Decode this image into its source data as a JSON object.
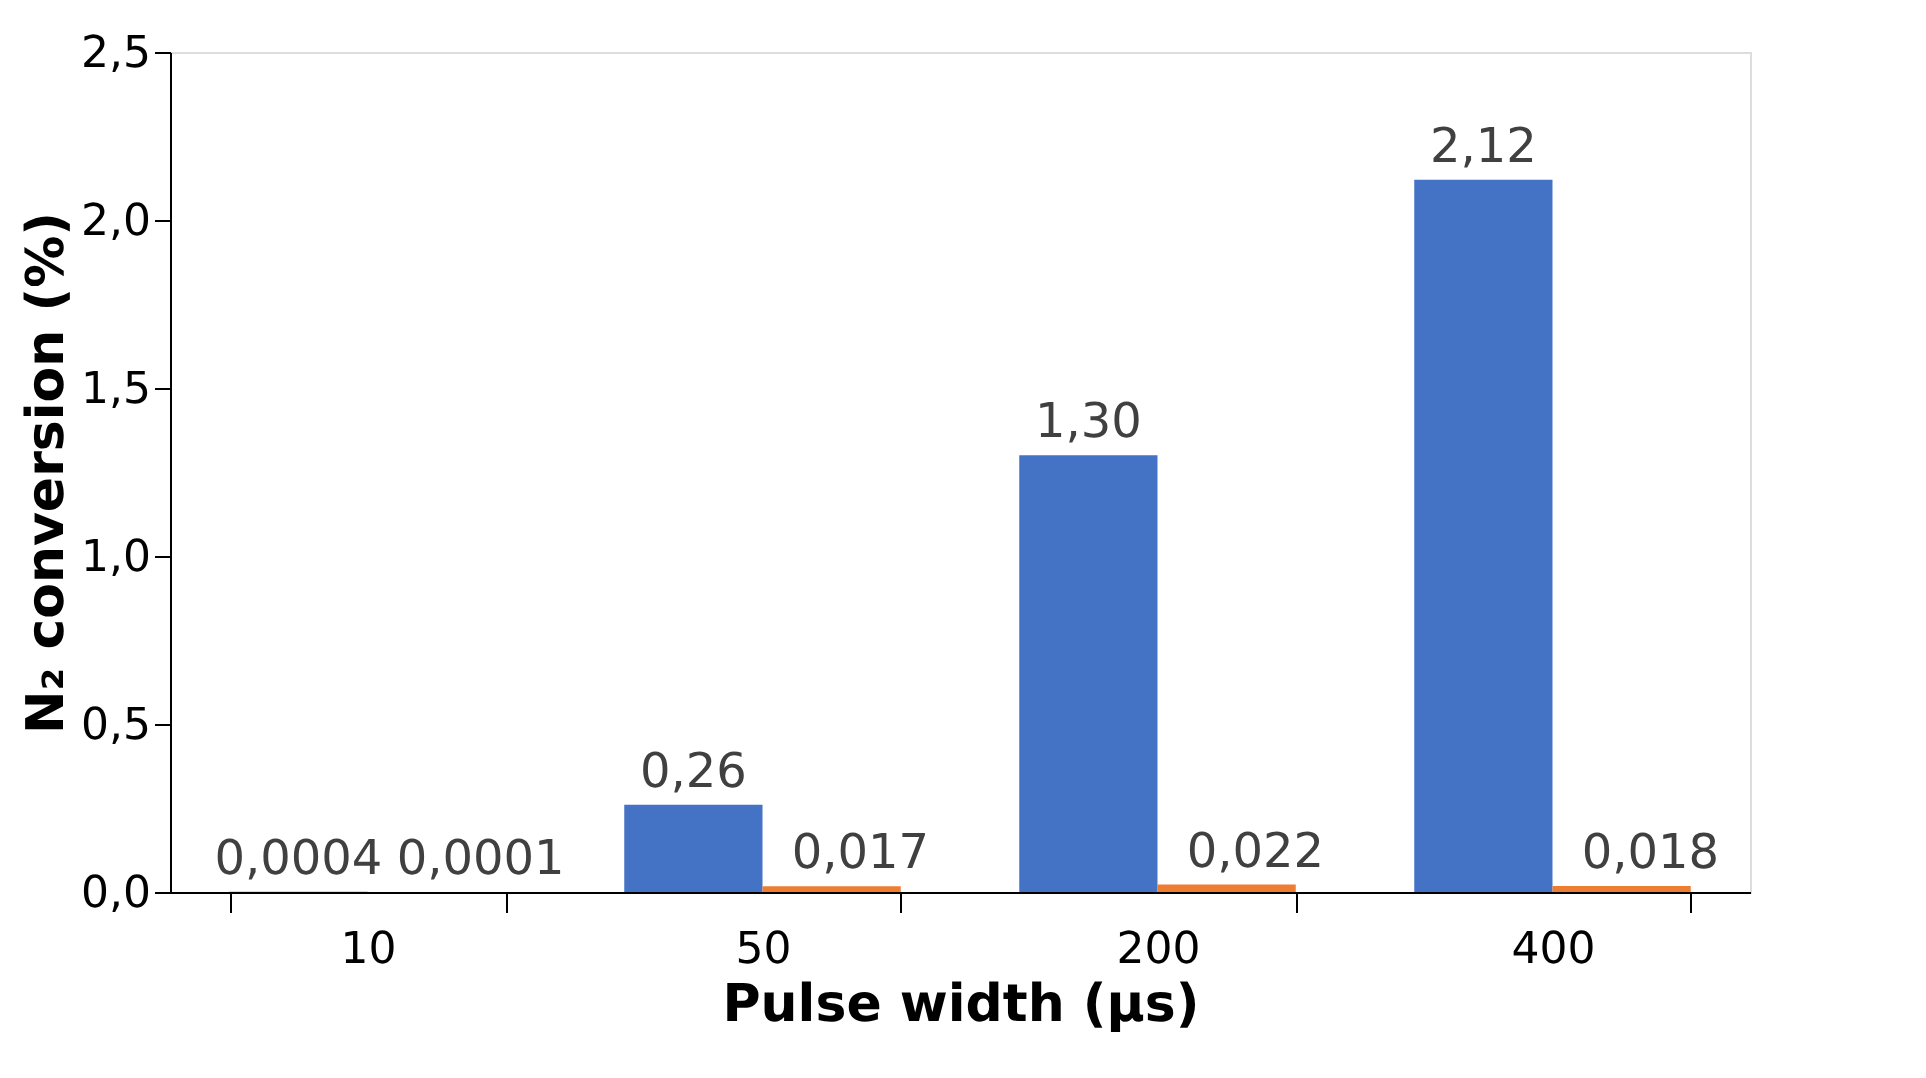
{
  "chart_data": {
    "type": "bar",
    "xlabel": "Pulse width (µs)",
    "ylabel": "N₂ conversion (%)",
    "categories": [
      "10",
      "50",
      "200",
      "400"
    ],
    "series": [
      {
        "color": "#4472c4",
        "values": [
          0.0004,
          0.26,
          1.3,
          2.12
        ],
        "value_labels": [
          "0,0004",
          "0,26",
          "1,30",
          "2,12"
        ]
      },
      {
        "color": "#ed7d31",
        "values": [
          0.0001,
          0.017,
          0.022,
          0.018
        ],
        "value_labels": [
          "0,0001",
          "0,017",
          "0,022",
          "0,018"
        ]
      }
    ],
    "ylim": [
      0,
      2.5
    ],
    "yticks": [
      {
        "value": 0,
        "label": "0,0"
      },
      {
        "value": 0.5,
        "label": "0,5"
      },
      {
        "value": 1.0,
        "label": "1,0"
      },
      {
        "value": 1.5,
        "label": "1,5"
      },
      {
        "value": 2.0,
        "label": "2,0"
      },
      {
        "value": 2.5,
        "label": "2,5"
      }
    ],
    "grid": false,
    "legend": false
  }
}
